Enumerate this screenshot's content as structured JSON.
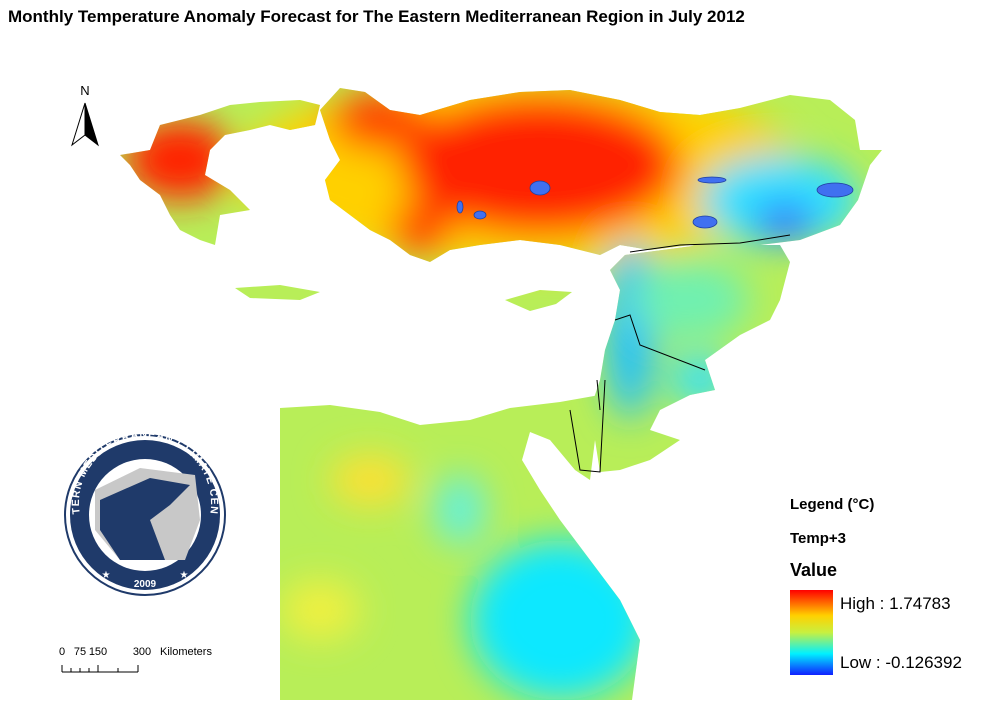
{
  "title": "Monthly Temperature Anomaly Forecast for The Eastern Mediterranean Region in July 2012",
  "north": "N",
  "logo": {
    "ring_text": "EASTERN MEDITERRANEAN CLIMATE CENTRE",
    "year": "2009"
  },
  "scale_bar": {
    "labels": [
      "0",
      "75",
      "150",
      "300"
    ],
    "unit": "Kilometers"
  },
  "legend": {
    "title": "Legend (°C)",
    "layer": "Temp+3",
    "field": "Value",
    "high": "High : 1.74783",
    "low": "Low : -0.126392"
  }
}
